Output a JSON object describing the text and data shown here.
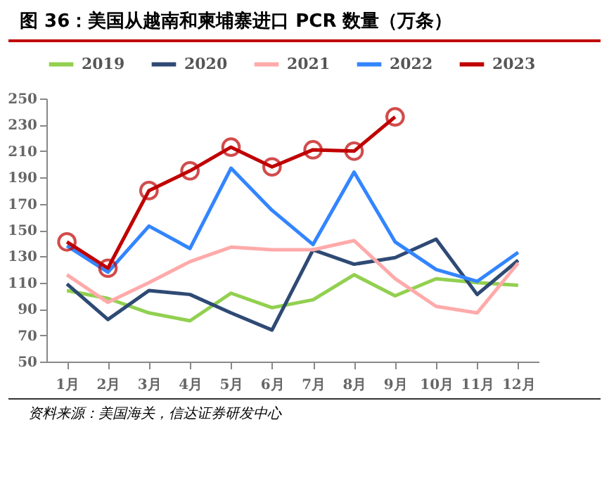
{
  "chart_data": {
    "type": "line",
    "title": "图 36：美国从越南和柬埔寨进口 PCR 数量（万条）",
    "categories": [
      "1月",
      "2月",
      "3月",
      "4月",
      "5月",
      "6月",
      "7月",
      "8月",
      "9月",
      "10月",
      "11月",
      "12月"
    ],
    "series": [
      {
        "name": "2019",
        "color": "#92d050",
        "values": [
          104,
          98,
          87,
          81,
          102,
          91,
          97,
          116,
          100,
          113,
          110,
          108
        ]
      },
      {
        "name": "2020",
        "color": "#2e4a74",
        "values": [
          109,
          82,
          104,
          101,
          87,
          74,
          135,
          124,
          129,
          143,
          101,
          127
        ]
      },
      {
        "name": "2021",
        "color": "#ffaaaa",
        "values": [
          116,
          95,
          110,
          126,
          137,
          135,
          135,
          142,
          113,
          92,
          87,
          125
        ]
      },
      {
        "name": "2022",
        "color": "#3385ff",
        "values": [
          138,
          118,
          153,
          136,
          197,
          165,
          139,
          194,
          141,
          120,
          111,
          133
        ]
      },
      {
        "name": "2023",
        "color": "#c00000",
        "marker": "circle",
        "values": [
          141,
          121,
          180,
          195,
          213,
          198,
          211,
          210,
          236,
          null,
          null,
          null
        ]
      }
    ],
    "ylim": [
      50,
      250
    ],
    "yticks": [
      50,
      70,
      90,
      110,
      130,
      150,
      170,
      190,
      210,
      230,
      250
    ],
    "grid": false,
    "legend": "top",
    "annotations": [
      "资料来源：美国海关，信达证券研发中心"
    ]
  }
}
